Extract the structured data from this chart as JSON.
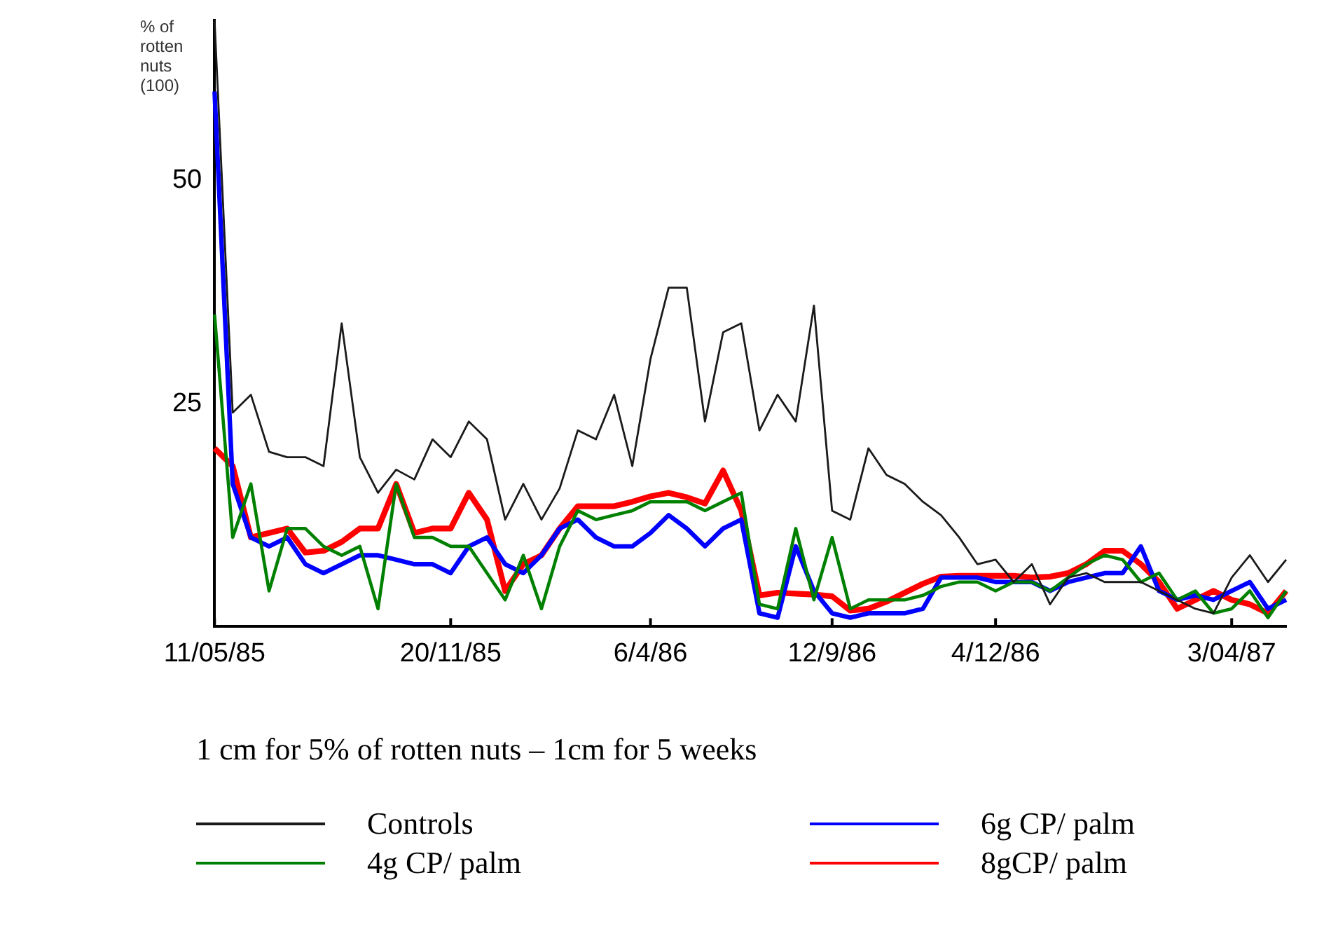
{
  "chart_data": {
    "type": "line",
    "ylabel": "% of rotten nuts (100)",
    "categories": [
      "11/05/85",
      null,
      null,
      null,
      null,
      null,
      null,
      null,
      null,
      null,
      null,
      null,
      null,
      "20/11/85",
      null,
      null,
      null,
      null,
      null,
      null,
      null,
      null,
      null,
      null,
      "6/4/86",
      null,
      null,
      null,
      null,
      null,
      null,
      null,
      null,
      null,
      "12/9/86",
      null,
      null,
      null,
      null,
      null,
      null,
      null,
      null,
      "4/12/86",
      null,
      null,
      null,
      null,
      null,
      null,
      null,
      null,
      null,
      null,
      null,
      null,
      "3/04/87",
      null,
      null,
      null
    ],
    "series": [
      {
        "name": "Controls",
        "color": "#1a1a1a",
        "values": [
          68,
          24,
          26,
          19.6,
          19,
          19,
          18,
          34,
          19,
          15,
          17.6,
          16.5,
          21,
          19,
          23,
          21,
          12,
          16,
          12,
          15.5,
          22,
          21,
          26,
          18,
          30,
          38,
          38,
          23,
          33,
          34,
          22,
          26,
          23,
          36,
          13,
          12,
          20,
          17,
          16,
          14,
          12.5,
          10,
          7,
          7.5,
          5,
          7,
          2.5,
          5.5,
          6,
          5,
          5,
          5,
          4,
          3,
          2,
          1.5,
          5.5,
          8,
          5,
          7.5
        ]
      },
      {
        "name": "4g CP/ palm",
        "color": "#008000",
        "values": [
          35,
          10,
          16,
          4,
          11,
          11,
          9,
          8,
          9,
          2,
          16,
          10,
          10,
          9,
          9,
          6,
          3,
          8,
          2,
          9,
          13,
          12,
          12.5,
          13,
          14,
          14,
          14,
          13,
          14,
          15,
          2.5,
          2,
          11,
          3,
          10,
          2,
          3,
          3,
          3,
          3.5,
          4.5,
          5,
          5,
          4,
          5,
          5,
          4,
          5.5,
          7,
          8,
          7.5,
          5,
          6,
          3,
          4,
          1.5,
          2,
          4,
          1,
          4
        ]
      },
      {
        "name": "6g CP/ palm",
        "color": "#0000ff",
        "values": [
          60,
          16,
          10,
          9,
          10,
          7,
          6,
          7,
          8,
          8,
          7.5,
          7,
          7,
          6,
          9,
          10,
          7,
          6,
          8,
          11,
          12,
          10,
          9,
          9,
          10.5,
          12.5,
          11,
          9,
          11,
          12,
          1.5,
          1,
          9,
          4,
          1.5,
          1,
          1.5,
          1.5,
          1.5,
          2,
          5.5,
          5.5,
          5.5,
          5,
          5,
          5,
          4,
          5,
          5.5,
          6,
          6,
          9,
          4,
          3,
          3.5,
          3,
          4,
          5,
          2,
          3
        ]
      },
      {
        "name": "8gCP/ palm",
        "color": "#ff0000",
        "values": [
          20,
          18,
          10,
          10.5,
          11,
          8.3,
          8.5,
          9.5,
          11,
          11,
          16,
          10.5,
          11,
          11,
          15,
          12,
          4,
          7,
          8,
          11,
          13.5,
          13.5,
          13.5,
          14,
          14.6,
          15,
          14.5,
          13.8,
          17.5,
          13,
          3.5,
          3.8,
          3.7,
          3.6,
          3.4,
          1.8,
          2,
          2.8,
          3.8,
          4.8,
          5.6,
          5.7,
          5.7,
          5.7,
          5.7,
          5.5,
          5.6,
          6,
          7,
          8.5,
          8.5,
          7,
          5,
          2,
          3,
          4,
          3,
          2.5,
          1.5,
          4
        ]
      }
    ],
    "ylim": [
      0,
      68
    ],
    "yticks": [
      25,
      50
    ],
    "grid": false,
    "legend": "bottom",
    "marker": "none",
    "line_style": "solid",
    "annotations": [
      "1 cm for 5% of rotten nuts – 1cm for 5 weeks"
    ]
  }
}
